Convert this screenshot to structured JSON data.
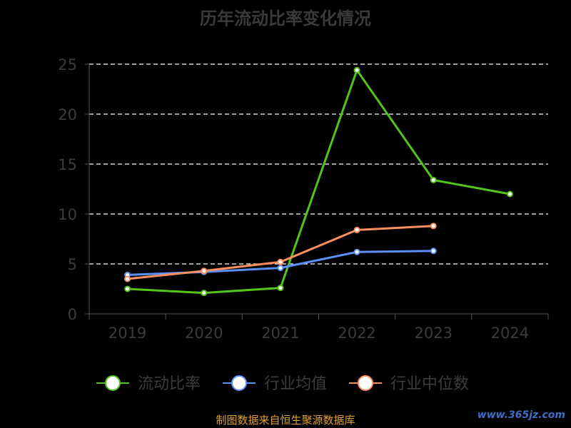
{
  "chart_data": {
    "type": "line",
    "title": "历年流动比率变化情况",
    "categories": [
      "2019",
      "2020",
      "2021",
      "2022",
      "2023",
      "2024"
    ],
    "ylim": [
      0,
      25
    ],
    "yticks": [
      "0",
      "5",
      "10",
      "15",
      "20",
      "25"
    ],
    "grid": true,
    "legend_position": "bottom",
    "series": [
      {
        "name": "流动比率",
        "color": "#52c41a",
        "values": [
          2.5,
          2.1,
          2.6,
          24.4,
          13.4,
          12.0
        ]
      },
      {
        "name": "行业均值",
        "color": "#5b8ff9",
        "values": [
          3.9,
          4.2,
          4.6,
          6.2,
          6.3,
          null
        ]
      },
      {
        "name": "行业中位数",
        "color": "#ff8f5e",
        "values": [
          3.5,
          4.3,
          5.2,
          8.4,
          8.8,
          null
        ]
      }
    ]
  },
  "footer": {
    "source": "制图数据来自恒生聚源数据库",
    "watermark": "www.365jz.com"
  }
}
